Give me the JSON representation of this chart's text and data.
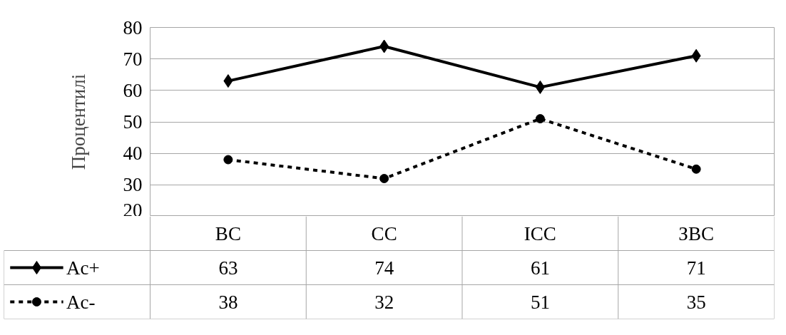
{
  "chart_data": {
    "type": "line",
    "ylabel": "Процентилі",
    "categories": [
      "ВС",
      "СС",
      "ІСС",
      "ЗВС"
    ],
    "series": [
      {
        "name": "Ac+",
        "color": "#000000",
        "values": [
          63,
          74,
          61,
          71
        ],
        "marker": "diamond",
        "line_style": "solid"
      },
      {
        "name": "Ac-",
        "color": "#000000",
        "values": [
          38,
          32,
          51,
          35
        ],
        "marker": "circle",
        "line_style": "dashed"
      }
    ],
    "ylim": [
      20,
      80
    ],
    "yticks": [
      20,
      30,
      40,
      50,
      60,
      70,
      80
    ],
    "grid": "y",
    "legend": "bottom",
    "data_labels": true
  }
}
